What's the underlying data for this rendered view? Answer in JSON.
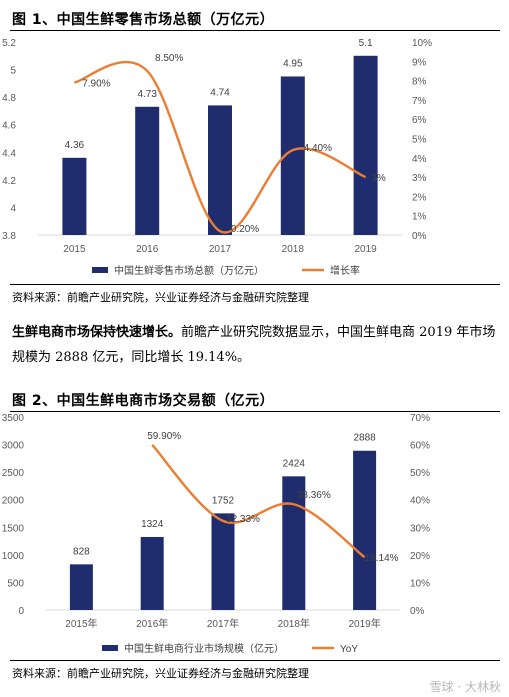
{
  "figure1": {
    "title": "图 1、中国生鲜零售市场总额（万亿元）",
    "source": "资料来源：前瞻产业研究院，兴业证券经济与金融研究院整理"
  },
  "paragraph": {
    "bold": "生鲜电商市场保持快速增长。",
    "text": "前瞻产业研究院数据显示，中国生鲜电商 2019 年市场规模为 2888 亿元，同比增长 19.14%。"
  },
  "figure2": {
    "title": "图 2、中国生鲜电商市场交易额（亿元）",
    "source": "资料来源：前瞻产业研究院，兴业证券经济与金融研究院整理"
  },
  "watermark": "雪球 · 大林秋",
  "chart_data": [
    {
      "type": "bar",
      "categories": [
        "2015",
        "2016",
        "2017",
        "2018",
        "2019"
      ],
      "series": [
        {
          "name": "中国生鲜零售市场总额（万亿元）",
          "type": "bar",
          "axis": "left",
          "values": [
            4.36,
            4.73,
            4.74,
            4.95,
            5.1
          ],
          "labels": [
            "4.36",
            "4.73",
            "4.74",
            "4.95",
            "5.1"
          ],
          "color": "#1f2d6e"
        },
        {
          "name": "增长率",
          "type": "line",
          "axis": "right",
          "smooth": true,
          "x": [
            "2015",
            "2016",
            "2017",
            "2018",
            "2019"
          ],
          "values": [
            7.9,
            8.5,
            0.2,
            4.4,
            3.0
          ],
          "labels": [
            "7.90%",
            "8.50%",
            "0.20%",
            "4.40%",
            "3%"
          ],
          "color": "#ed7d31"
        }
      ],
      "ylim": [
        3.8,
        5.2
      ],
      "yticks": [
        "3.8",
        "4",
        "4.2",
        "4.4",
        "4.6",
        "4.8",
        "5",
        "5.2"
      ],
      "y2lim": [
        0,
        10
      ],
      "y2ticks": [
        "0%",
        "1%",
        "2%",
        "3%",
        "4%",
        "5%",
        "6%",
        "7%",
        "8%",
        "9%",
        "10%"
      ],
      "grid": false,
      "legend": "bottom"
    },
    {
      "type": "bar",
      "categories": [
        "2015年",
        "2016年",
        "2017年",
        "2018年",
        "2019年"
      ],
      "series": [
        {
          "name": "中国生鲜电商行业市场规模（亿元）",
          "type": "bar",
          "axis": "left",
          "values": [
            828,
            1324,
            1752,
            2424,
            2888
          ],
          "labels": [
            "828",
            "1324",
            "1752",
            "2424",
            "2888"
          ],
          "color": "#1f2d6e"
        },
        {
          "name": "YoY",
          "type": "line",
          "axis": "right",
          "smooth": true,
          "x": [
            "2016年",
            "2017年",
            "2018年",
            "2019年"
          ],
          "values": [
            59.9,
            32.33,
            38.36,
            19.14
          ],
          "labels": [
            "59.90%",
            "32.33%",
            "38.36%",
            "19.14%"
          ],
          "color": "#ed7d31"
        }
      ],
      "ylim": [
        0,
        3500
      ],
      "yticks": [
        "0",
        "500",
        "1000",
        "1500",
        "2000",
        "2500",
        "3000",
        "3500"
      ],
      "y2lim": [
        0,
        70
      ],
      "y2ticks": [
        "0%",
        "10%",
        "20%",
        "30%",
        "40%",
        "50%",
        "60%",
        "70%"
      ],
      "grid": false,
      "legend": "bottom"
    }
  ]
}
